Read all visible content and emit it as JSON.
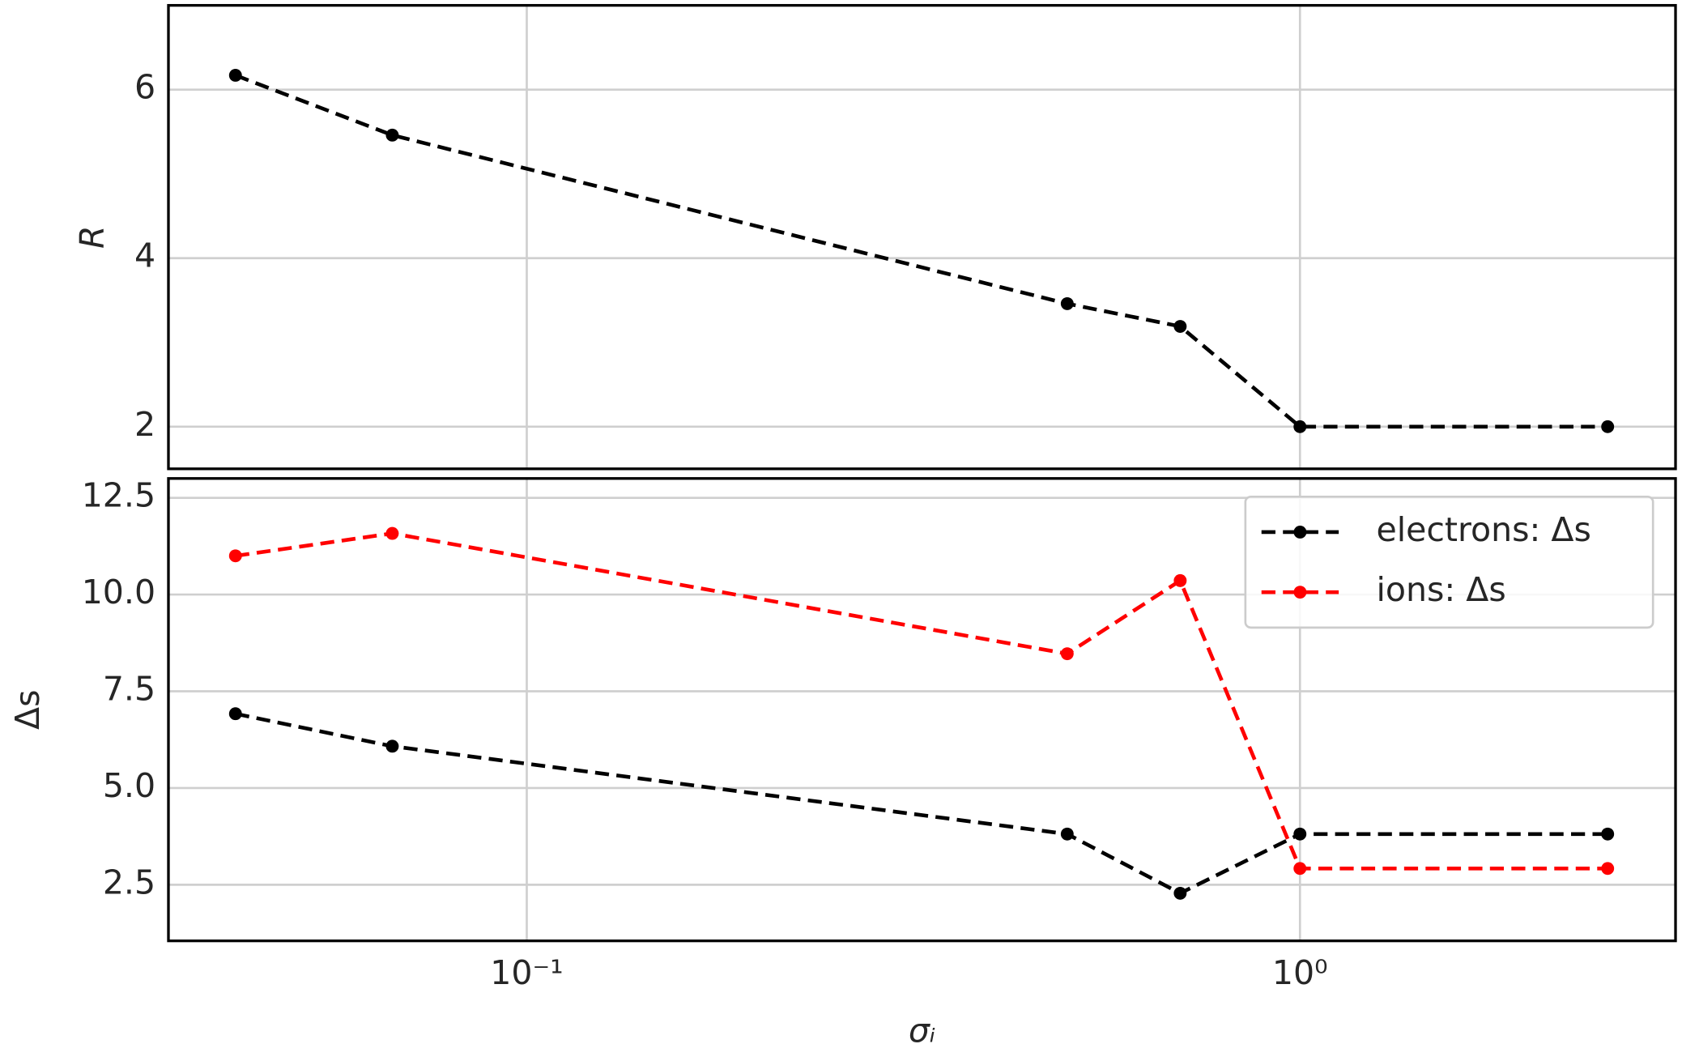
{
  "chart_data": [
    {
      "type": "line",
      "ylabel": "R",
      "x": [
        0.042,
        0.067,
        0.5,
        0.7,
        1,
        2.5
      ],
      "xlim": [
        0.0344,
        3.06
      ],
      "xscale": "log",
      "ylim": [
        1.5,
        7.0
      ],
      "yticks": [
        2,
        4,
        6
      ],
      "grid": true,
      "series": [
        {
          "color": "#000000",
          "values": [
            6.17,
            5.46,
            3.46,
            3.19,
            2,
            2
          ]
        }
      ]
    },
    {
      "type": "line",
      "ylabel": "Δs",
      "xlabel": "σᵢ",
      "x": [
        0.042,
        0.067,
        0.5,
        0.7,
        1,
        2.5
      ],
      "xlim": [
        0.0344,
        3.06
      ],
      "xscale": "log",
      "xticks": [
        {
          "value": 0.1,
          "label": "10⁻¹"
        },
        {
          "value": 1,
          "label": "10⁰"
        }
      ],
      "ylim": [
        1.05,
        13.0
      ],
      "yticks": [
        2.5,
        {
          "value": 5,
          "label": "5.0"
        },
        7.5,
        {
          "value": 10,
          "label": "10.0"
        },
        12.5
      ],
      "grid": true,
      "legend": "upper right",
      "series": [
        {
          "name": "electrons: Δs",
          "color": "#000000",
          "values": [
            6.92,
            6.08,
            3.81,
            2.28,
            3.81,
            3.81
          ]
        },
        {
          "name": "ions: Δs",
          "color": "#ff0000",
          "values": [
            11.0,
            11.58,
            8.47,
            10.36,
            2.92,
            2.92
          ]
        }
      ]
    }
  ]
}
